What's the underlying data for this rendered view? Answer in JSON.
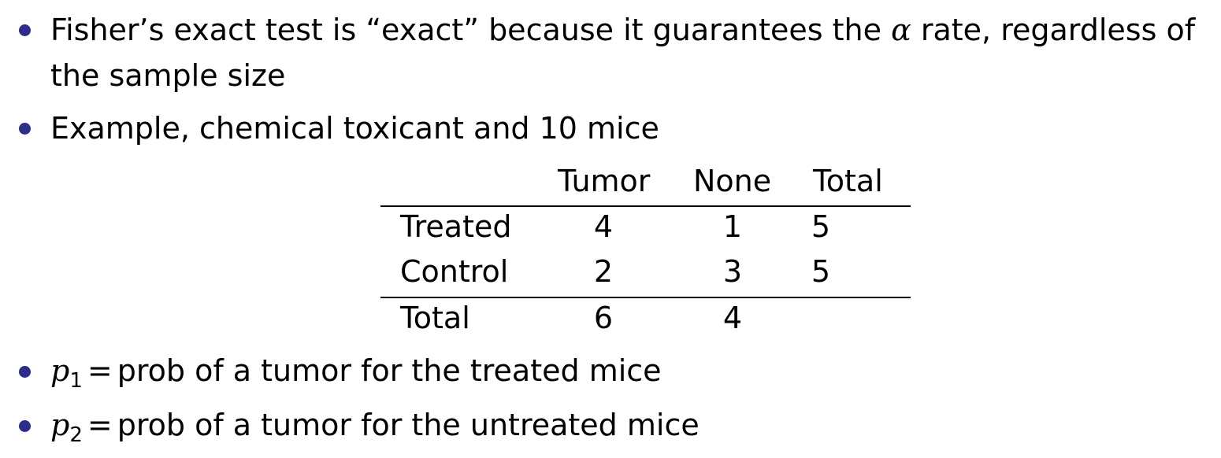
{
  "bullets": [
    {
      "line1_a": "Fisher’s exact test is “exact” because it guarantees the ",
      "alpha": "α",
      "line1_b": " rate, regardless of",
      "line2": "the sample size"
    },
    {
      "text": "Example, chemical toxicant and 10 mice"
    },
    {
      "var": "p",
      "sub": "1",
      "eq": "=",
      "text": "prob of a tumor for the treated mice"
    },
    {
      "var": "p",
      "sub": "2",
      "eq": "=",
      "text": "prob of a tumor for the untreated mice"
    }
  ],
  "table": {
    "headers": [
      "Tumor",
      "None",
      "Total"
    ],
    "rows": [
      {
        "label": "Treated",
        "values": [
          "4",
          "1",
          "5"
        ]
      },
      {
        "label": "Control",
        "values": [
          "2",
          "3",
          "5"
        ]
      },
      {
        "label": "Total",
        "values": [
          "6",
          "4",
          ""
        ]
      }
    ]
  },
  "colors": {
    "bullet": "#2b2e8a",
    "text": "#000000"
  }
}
